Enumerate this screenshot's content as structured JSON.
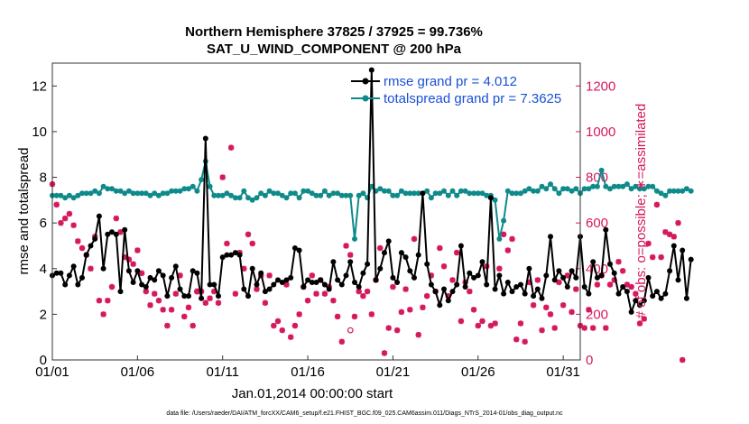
{
  "colors": {
    "rmse": "#000000",
    "spread": "#0f8a8a",
    "obs": "#d6185e",
    "legend_text": "#1a4fd6",
    "right_axis": "#d6185e"
  },
  "chart_data": {
    "type": "line",
    "title_line1": "Northern Hemisphere 37825 / 37925 = 99.736%",
    "title_line2": "SAT_U_WIND_COMPONENT @ 200 hPa",
    "xlabel": "Jan.01,2014 00:00:00 start",
    "ylabel_left": "rmse and totalspread",
    "ylabel_right": "# of obs: o=possible; ∗=assimilated",
    "footnote": "data file: /Users/raeder/DAI/ATM_forcXX/CAM6_setup/f.e21.FHIST_BGC.f09_025.CAM6assim.011/Diags_NTrS_2014-01/obs_diag_output.nc",
    "xlim": [
      1,
      32
    ],
    "ylim_left": [
      0,
      13
    ],
    "ylim_right": [
      0,
      1300
    ],
    "xticks": [
      1,
      6,
      11,
      16,
      21,
      26,
      31
    ],
    "xtick_labels": [
      "01/01",
      "01/06",
      "01/11",
      "01/16",
      "01/21",
      "01/26",
      "01/31"
    ],
    "yticks_left": [
      0,
      2,
      4,
      6,
      8,
      10,
      12
    ],
    "ytick_labels_left": [
      "0",
      "2",
      "4",
      "6",
      "8",
      "10",
      "12"
    ],
    "yticks_right": [
      0,
      200,
      400,
      600,
      800,
      1000,
      1200
    ],
    "ytick_labels_right": [
      "0",
      "200",
      "400",
      "600",
      "800",
      "1000",
      "1200"
    ],
    "legend": [
      {
        "name": "rmse grand pr = 4.012"
      },
      {
        "name": "totalspread grand pr = 7.3625"
      }
    ],
    "x_start": 1,
    "x_step": 0.25,
    "series": [
      {
        "name": "rmse",
        "values": [
          3.7,
          3.8,
          3.8,
          3.3,
          3.7,
          4.1,
          3.3,
          3.6,
          4.6,
          5.0,
          5.3,
          6.3,
          4.0,
          5.5,
          5.6,
          5.5,
          3.0,
          5.7,
          3.9,
          3.4,
          3.9,
          3.3,
          3.2,
          3.6,
          3.5,
          3.9,
          3.7,
          2.8,
          3.6,
          4.1,
          3.1,
          2.8,
          2.8,
          3.9,
          3.8,
          2.7,
          9.7,
          3.3,
          3.3,
          2.8,
          4.5,
          4.6,
          4.6,
          4.7,
          4.6,
          3.1,
          2.8,
          4.0,
          3.3,
          3.8,
          3.0,
          3.1,
          3.3,
          3.5,
          3.4,
          3.5,
          3.6,
          4.9,
          4.8,
          3.2,
          3.5,
          3.4,
          3.4,
          3.5,
          3.3,
          3.1,
          4.3,
          3.5,
          3.3,
          3.7,
          4.3,
          3.4,
          3.2,
          3.8,
          4.2,
          12.7,
          3.5,
          4.0,
          4.7,
          5.2,
          3.6,
          3.4,
          4.7,
          4.5,
          3.9,
          3.6,
          4.6,
          7.3,
          4.2,
          3.3,
          3.0,
          2.4,
          3.1,
          2.6,
          3.0,
          3.3,
          5.0,
          3.2,
          3.8,
          3.6,
          3.7,
          4.3,
          3.3,
          7.1,
          3.1,
          3.7,
          2.9,
          3.4,
          3.0,
          3.2,
          3.3,
          2.9,
          4.0,
          2.8,
          3.1,
          2.7,
          3.7,
          5.4,
          3.5,
          3.9,
          3.6,
          3.2,
          3.9,
          3.6,
          5.4,
          3.2,
          2.9,
          4.3,
          3.6,
          3.7,
          5.7,
          4.2,
          3.8,
          2.9,
          3.2,
          3.0,
          2.1,
          2.6,
          2.4,
          2.6,
          3.6,
          2.8,
          3.0,
          2.7,
          2.9,
          3.9,
          5.0,
          3.5,
          4.8,
          2.7,
          4.4
        ]
      },
      {
        "name": "totalspread",
        "values": [
          7.2,
          7.2,
          7.2,
          7.1,
          7.2,
          7.1,
          7.2,
          7.3,
          7.3,
          7.3,
          7.4,
          7.3,
          7.6,
          7.5,
          7.5,
          7.4,
          7.4,
          7.3,
          7.4,
          7.3,
          7.3,
          7.3,
          7.3,
          7.2,
          7.3,
          7.2,
          7.3,
          7.3,
          7.4,
          7.4,
          7.4,
          7.5,
          7.5,
          7.6,
          7.4,
          7.9,
          8.7,
          7.6,
          7.2,
          7.2,
          7.2,
          7.3,
          7.2,
          7.1,
          7.1,
          7.4,
          7.1,
          7.0,
          7.1,
          7.3,
          7.2,
          7.4,
          7.3,
          7.3,
          7.2,
          7.1,
          7.3,
          7.3,
          7.1,
          7.4,
          7.4,
          7.3,
          7.2,
          7.2,
          7.4,
          7.2,
          7.3,
          7.3,
          7.2,
          7.2,
          7.2,
          5.3,
          7.2,
          7.3,
          7.1,
          7.6,
          7.4,
          7.5,
          7.4,
          7.4,
          7.2,
          7.2,
          7.4,
          7.3,
          7.3,
          7.3,
          7.3,
          7.3,
          7.4,
          7.1,
          7.3,
          7.3,
          7.4,
          7.2,
          7.4,
          7.2,
          7.4,
          7.4,
          7.3,
          7.3,
          7.3,
          7.3,
          7.2,
          7.2,
          7.0,
          5.3,
          6.1,
          7.4,
          7.3,
          7.3,
          7.3,
          7.4,
          7.5,
          7.4,
          7.4,
          7.6,
          7.5,
          7.7,
          7.5,
          7.3,
          7.5,
          7.5,
          7.4,
          7.5,
          7.3,
          7.5,
          7.5,
          7.6,
          7.6,
          8.3,
          7.6,
          7.5,
          7.6,
          7.6,
          7.6,
          7.7,
          7.5,
          7.6,
          7.5,
          7.5,
          7.6,
          7.6,
          7.4,
          7.3,
          7.2,
          7.4,
          7.4,
          7.4,
          7.4,
          7.5,
          7.4
        ]
      },
      {
        "name": "obs_assimilated",
        "axis": "right",
        "values": [
          770,
          680,
          600,
          620,
          640,
          590,
          520,
          490,
          460,
          400,
          540,
          260,
          200,
          260,
          320,
          620,
          560,
          450,
          440,
          420,
          480,
          380,
          300,
          240,
          290,
          260,
          220,
          150,
          220,
          290,
          370,
          190,
          230,
          150,
          300,
          300,
          250,
          270,
          300,
          250,
          800,
          510,
          930,
          290,
          470,
          400,
          550,
          510,
          310,
          370,
          250,
          370,
          150,
          170,
          130,
          330,
          100,
          150,
          200,
          320,
          260,
          370,
          290,
          350,
          290,
          320,
          260,
          190,
          80,
          500,
          460,
          190,
          300,
          280,
          300,
          200,
          350,
          490,
          30,
          140,
          320,
          130,
          210,
          310,
          220,
          530,
          110,
          230,
          280,
          370,
          300,
          490,
          410,
          280,
          350,
          470,
          170,
          340,
          300,
          220,
          150,
          170,
          410,
          150,
          160,
          400,
          550,
          480,
          530,
          90,
          160,
          80,
          340,
          240,
          350,
          130,
          230,
          200,
          140,
          340,
          240,
          370,
          210,
          310,
          150,
          140,
          220,
          140,
          330,
          370,
          140,
          330,
          350,
          430,
          390,
          330,
          320,
          290,
          160,
          180,
          510,
          450,
          680,
          450,
          560,
          550,
          540,
          600,
          0
        ]
      },
      {
        "name": "obs_possible",
        "axis": "right",
        "values": [
          300,
          130
        ],
        "x": [
          9.5,
          18.5
        ]
      }
    ]
  }
}
